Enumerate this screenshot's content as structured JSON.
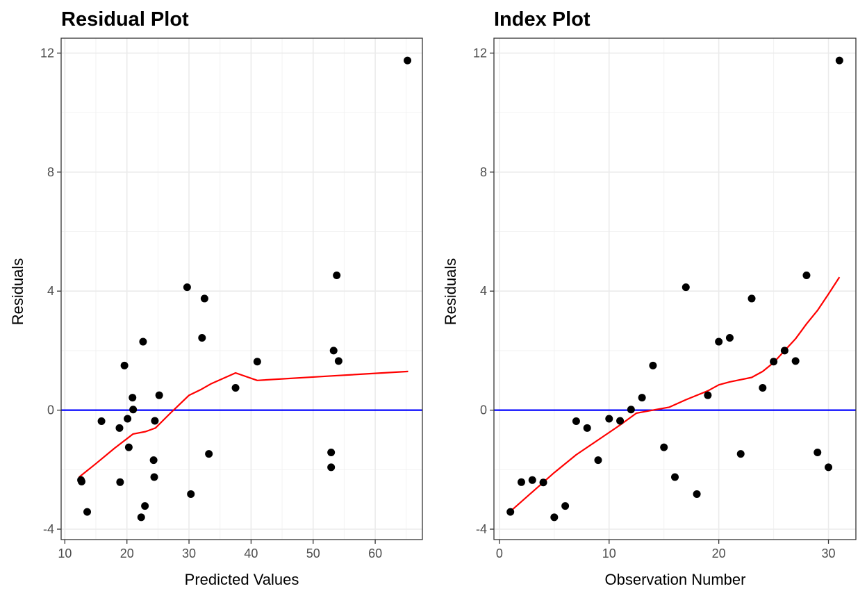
{
  "chart_data": [
    {
      "type": "scatter",
      "title": "Residual Plot",
      "xlabel": "Predicted Values",
      "ylabel": "Residuals",
      "xlim": [
        9.4,
        67.6
      ],
      "ylim": [
        -4.35,
        12.5
      ],
      "xticks": [
        10,
        20,
        30,
        40,
        50,
        60
      ],
      "xtick_labels": [
        "10",
        "20",
        "30",
        "40",
        "50",
        "60"
      ],
      "yticks": [
        -4,
        0,
        4,
        8,
        12
      ],
      "ytick_labels": [
        "-4",
        "0",
        "4",
        "8",
        "12"
      ],
      "grid": true,
      "points": [
        {
          "x": 12.6,
          "y": -2.35
        },
        {
          "x": 12.7,
          "y": -2.4
        },
        {
          "x": 13.6,
          "y": -3.42
        },
        {
          "x": 15.9,
          "y": -0.37
        },
        {
          "x": 18.8,
          "y": -0.6
        },
        {
          "x": 18.9,
          "y": -2.42
        },
        {
          "x": 19.6,
          "y": 1.5
        },
        {
          "x": 20.1,
          "y": -0.29
        },
        {
          "x": 20.3,
          "y": -1.25
        },
        {
          "x": 20.9,
          "y": 0.42
        },
        {
          "x": 21.0,
          "y": 0.02
        },
        {
          "x": 22.3,
          "y": -3.6
        },
        {
          "x": 22.6,
          "y": 2.3
        },
        {
          "x": 22.9,
          "y": -3.22
        },
        {
          "x": 24.3,
          "y": -1.68
        },
        {
          "x": 24.4,
          "y": -2.25
        },
        {
          "x": 24.5,
          "y": -0.36
        },
        {
          "x": 25.2,
          "y": 0.5
        },
        {
          "x": 29.7,
          "y": 4.13
        },
        {
          "x": 30.3,
          "y": -2.82
        },
        {
          "x": 32.1,
          "y": 2.43
        },
        {
          "x": 32.5,
          "y": 3.75
        },
        {
          "x": 33.2,
          "y": -1.47
        },
        {
          "x": 37.5,
          "y": 0.75
        },
        {
          "x": 41.0,
          "y": 1.63
        },
        {
          "x": 52.9,
          "y": -1.42
        },
        {
          "x": 52.9,
          "y": -1.92
        },
        {
          "x": 53.3,
          "y": 2.0
        },
        {
          "x": 53.8,
          "y": 4.53
        },
        {
          "x": 54.1,
          "y": 1.65
        },
        {
          "x": 65.2,
          "y": 11.75
        }
      ],
      "reference_line": {
        "y": 0,
        "color": "#0000ff"
      },
      "smooth_line": {
        "color": "#ff0000",
        "x": [
          12.3,
          15.0,
          18.0,
          21.0,
          23.0,
          24.6,
          27.0,
          30.0,
          32.0,
          33.5,
          37.5,
          41.0,
          53.0,
          65.3
        ],
        "y": [
          -2.25,
          -1.8,
          -1.28,
          -0.8,
          -0.72,
          -0.6,
          -0.1,
          0.5,
          0.7,
          0.88,
          1.25,
          1.0,
          1.15,
          1.3
        ]
      }
    },
    {
      "type": "scatter",
      "title": "Index Plot",
      "xlabel": "Observation Number",
      "ylabel": "Residuals",
      "xlim": [
        -0.5,
        32.5
      ],
      "ylim": [
        -4.35,
        12.5
      ],
      "xticks": [
        0,
        10,
        20,
        30
      ],
      "xtick_labels": [
        "0",
        "10",
        "20",
        "30"
      ],
      "yticks": [
        -4,
        0,
        4,
        8,
        12
      ],
      "ytick_labels": [
        "-4",
        "0",
        "4",
        "8",
        "12"
      ],
      "grid": true,
      "points": [
        {
          "x": 1,
          "y": -3.42
        },
        {
          "x": 2,
          "y": -2.42
        },
        {
          "x": 3,
          "y": -2.35
        },
        {
          "x": 4,
          "y": -2.43
        },
        {
          "x": 5,
          "y": -3.6
        },
        {
          "x": 6,
          "y": -3.22
        },
        {
          "x": 7,
          "y": -0.37
        },
        {
          "x": 8,
          "y": -0.6
        },
        {
          "x": 9,
          "y": -1.68
        },
        {
          "x": 10,
          "y": -0.29
        },
        {
          "x": 11,
          "y": -0.36
        },
        {
          "x": 12,
          "y": 0.02
        },
        {
          "x": 13,
          "y": 0.42
        },
        {
          "x": 14,
          "y": 1.5
        },
        {
          "x": 15,
          "y": -1.25
        },
        {
          "x": 16,
          "y": -2.25
        },
        {
          "x": 17,
          "y": 4.13
        },
        {
          "x": 18,
          "y": -2.82
        },
        {
          "x": 19,
          "y": 0.5
        },
        {
          "x": 20,
          "y": 2.3
        },
        {
          "x": 21,
          "y": 2.43
        },
        {
          "x": 22,
          "y": -1.47
        },
        {
          "x": 23,
          "y": 3.75
        },
        {
          "x": 24,
          "y": 0.75
        },
        {
          "x": 25,
          "y": 1.63
        },
        {
          "x": 26,
          "y": 2.0
        },
        {
          "x": 27,
          "y": 1.65
        },
        {
          "x": 28,
          "y": 4.53
        },
        {
          "x": 29,
          "y": -1.42
        },
        {
          "x": 30,
          "y": -1.92
        },
        {
          "x": 31,
          "y": 11.75
        }
      ],
      "reference_line": {
        "y": 0,
        "color": "#0000ff"
      },
      "smooth_line": {
        "color": "#ff0000",
        "x": [
          1,
          3,
          5,
          7,
          9,
          11,
          12.5,
          14,
          15.5,
          17,
          19,
          20,
          21,
          23,
          24,
          25,
          26,
          27,
          28,
          29,
          30,
          31
        ],
        "y": [
          -3.4,
          -2.75,
          -2.1,
          -1.5,
          -1.0,
          -0.5,
          -0.1,
          0.0,
          0.1,
          0.35,
          0.65,
          0.85,
          0.95,
          1.1,
          1.3,
          1.6,
          2.0,
          2.4,
          2.9,
          3.35,
          3.9,
          4.47
        ]
      }
    }
  ]
}
